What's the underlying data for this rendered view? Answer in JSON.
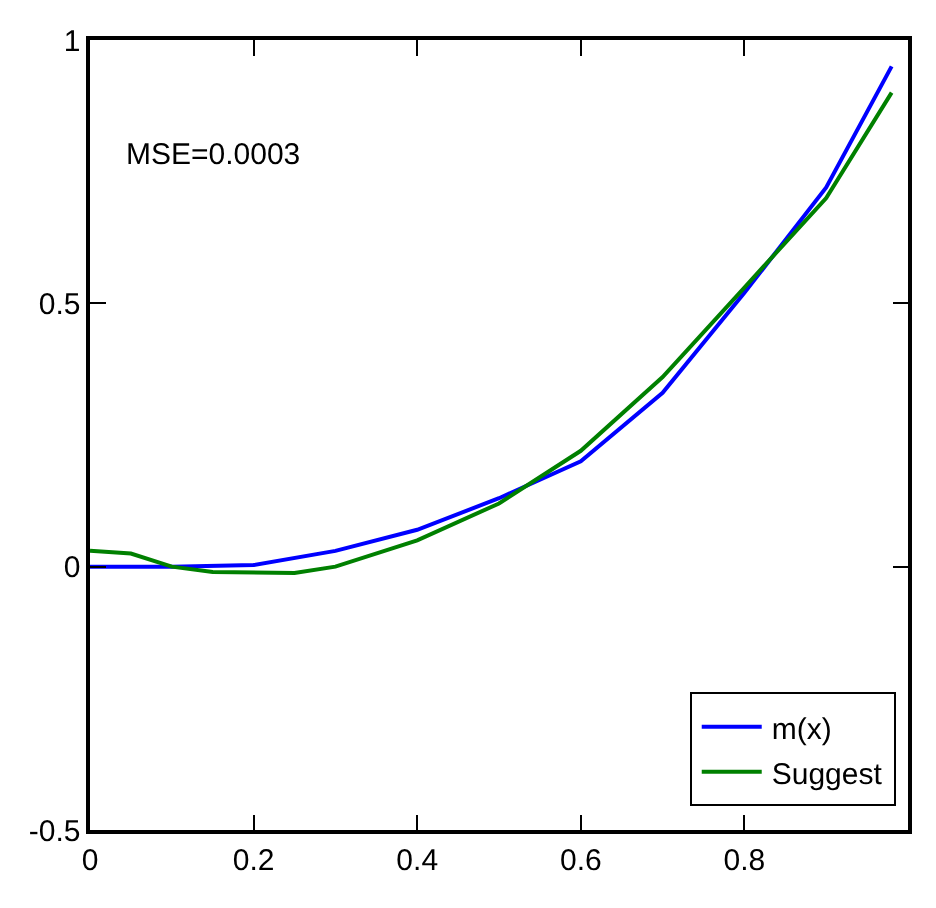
{
  "chart_data": {
    "type": "line",
    "series": [
      {
        "name": "m(x)",
        "color": "#0000ff",
        "x": [
          0,
          0.1,
          0.2,
          0.3,
          0.4,
          0.5,
          0.6,
          0.7,
          0.8,
          0.9,
          0.98
        ],
        "values": [
          0,
          0,
          0.003,
          0.03,
          0.07,
          0.13,
          0.2,
          0.33,
          0.52,
          0.72,
          0.95
        ]
      },
      {
        "name": "Suggest",
        "color": "#008000",
        "x": [
          0,
          0.05,
          0.1,
          0.15,
          0.25,
          0.3,
          0.4,
          0.5,
          0.6,
          0.7,
          0.8,
          0.9,
          0.98
        ],
        "values": [
          0.03,
          0.025,
          0,
          -0.01,
          -0.012,
          0,
          0.05,
          0.12,
          0.22,
          0.36,
          0.53,
          0.7,
          0.9
        ]
      }
    ],
    "xlim": [
      0,
      1
    ],
    "xticks": [
      0,
      0.2,
      0.4,
      0.6,
      0.8
    ],
    "ylim": [
      -0.5,
      1
    ],
    "yticks": [
      -0.5,
      0,
      0.5,
      1
    ],
    "annotations": [
      "MSE=0.0003"
    ],
    "legend": "bottom right",
    "marker": "none",
    "line_style": "solid"
  }
}
